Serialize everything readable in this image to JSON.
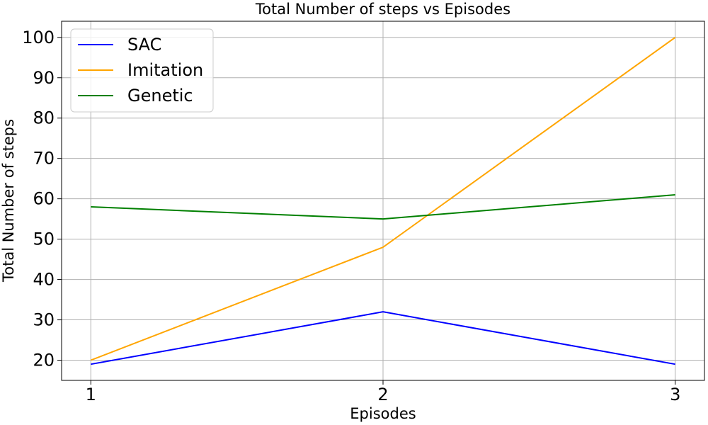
{
  "chart_data": {
    "type": "line",
    "title": "Total Number of steps vs Episodes",
    "xlabel": "Episodes",
    "ylabel": "Total Number of steps",
    "x": [
      1,
      2,
      3
    ],
    "xticks": [
      "1",
      "2",
      "3"
    ],
    "yticks": [
      "20",
      "30",
      "40",
      "50",
      "60",
      "70",
      "80",
      "90",
      "100"
    ],
    "ylim": [
      15,
      104
    ],
    "xlim": [
      0.9,
      3.1
    ],
    "grid": true,
    "legend_position": "top-left",
    "series": [
      {
        "name": "SAC",
        "color": "#0000ff",
        "values": [
          19,
          32,
          19
        ]
      },
      {
        "name": "Imitation",
        "color": "#ffa500",
        "values": [
          20,
          48,
          100
        ]
      },
      {
        "name": "Genetic",
        "color": "#008000",
        "values": [
          58,
          55,
          61
        ]
      }
    ]
  }
}
